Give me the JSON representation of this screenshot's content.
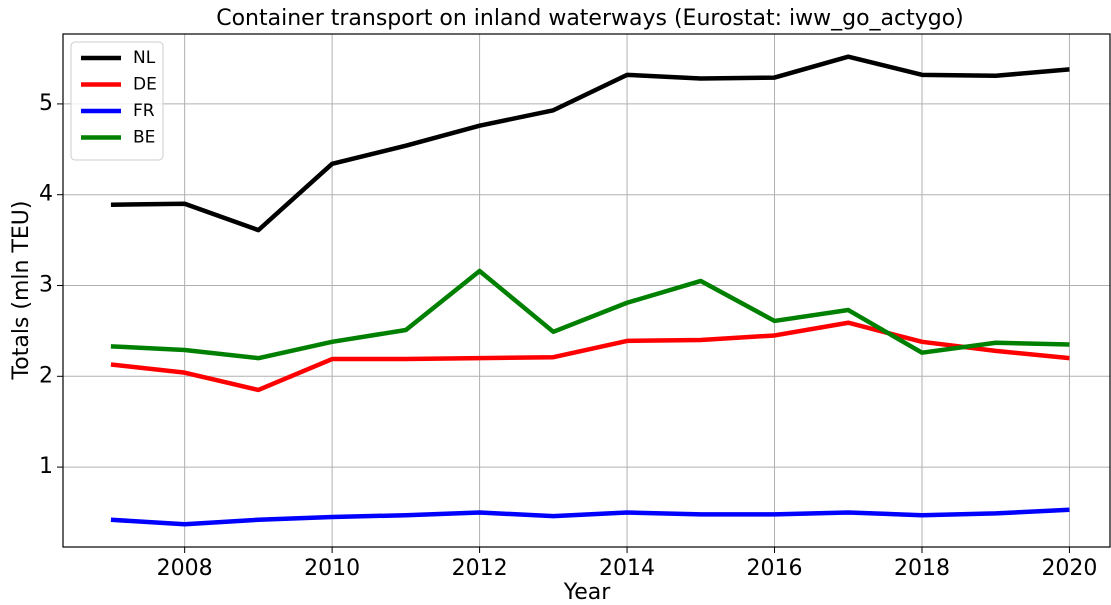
{
  "chart_data": {
    "type": "line",
    "title": "Container transport on inland waterways (Eurostat: iww_go_actygo)",
    "x_label": "Year",
    "y_label": "Totals (mln TEU)",
    "x": [
      2007,
      2008,
      2009,
      2010,
      2011,
      2012,
      2013,
      2014,
      2015,
      2016,
      2017,
      2018,
      2019,
      2020
    ],
    "series": [
      {
        "name": "NL",
        "color": "#000000",
        "values": [
          3.89,
          3.9,
          3.61,
          4.34,
          4.54,
          4.76,
          4.93,
          5.32,
          5.28,
          5.29,
          5.52,
          5.32,
          5.31,
          5.38
        ]
      },
      {
        "name": "DE",
        "color": "#ff0000",
        "values": [
          2.13,
          2.04,
          1.85,
          2.19,
          2.19,
          2.2,
          2.21,
          2.39,
          2.4,
          2.45,
          2.59,
          2.38,
          2.28,
          2.2
        ]
      },
      {
        "name": "FR",
        "color": "#0000ff",
        "values": [
          0.42,
          0.37,
          0.42,
          0.45,
          0.47,
          0.5,
          0.46,
          0.5,
          0.48,
          0.48,
          0.5,
          0.47,
          0.49,
          0.53
        ]
      },
      {
        "name": "BE",
        "color": "#008000",
        "values": [
          2.33,
          2.29,
          2.2,
          2.38,
          2.51,
          3.16,
          2.49,
          2.81,
          3.05,
          2.61,
          2.73,
          2.26,
          2.37,
          2.35
        ]
      }
    ],
    "xlim": [
      2006.35,
      2020.55
    ],
    "xticks": [
      2008,
      2010,
      2012,
      2014,
      2016,
      2018,
      2020
    ],
    "ylim": [
      0.12,
      5.77
    ],
    "yticks": [
      1,
      2,
      3,
      4,
      5
    ],
    "grid": true,
    "legend": "upper-left"
  }
}
